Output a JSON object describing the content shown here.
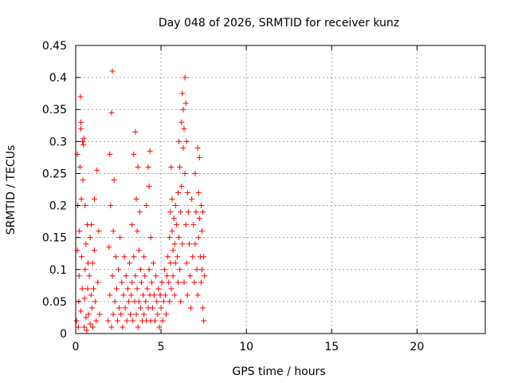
{
  "chart_data": {
    "type": "scatter",
    "title": "Day 048 of 2026, SRMTID for receiver kunz",
    "xlabel": "GPS time / hours",
    "ylabel": "SRMTID / TECUs",
    "xlim": [
      0,
      24
    ],
    "ylim": [
      0,
      0.45
    ],
    "xticks": [
      0,
      5,
      10,
      15,
      20
    ],
    "xtick_labels": [
      "0",
      "5",
      "10",
      "15",
      "20"
    ],
    "yticks": [
      0,
      0.05,
      0.1,
      0.15,
      0.2,
      0.25,
      0.3,
      0.35,
      0.4,
      0.45
    ],
    "ytick_labels": [
      "0",
      "0.05",
      "0.1",
      "0.15",
      "0.2",
      "0.25",
      "0.3",
      "0.35",
      "0.4",
      "0.45"
    ],
    "grid": true,
    "marker": "+",
    "color": "#ff0000",
    "series": [
      {
        "points": [
          [
            0.05,
            0.02
          ],
          [
            0.1,
            0.13
          ],
          [
            0.1,
            0.28
          ],
          [
            0.12,
            0.2
          ],
          [
            0.15,
            0.01
          ],
          [
            0.18,
            0.05
          ],
          [
            0.2,
            0.09
          ],
          [
            0.22,
            0.16
          ],
          [
            0.25,
            0.26
          ],
          [
            0.28,
            0.37
          ],
          [
            0.3,
            0.32
          ],
          [
            0.3,
            0.33
          ],
          [
            0.3,
            0.035
          ],
          [
            0.33,
            0.21
          ],
          [
            0.35,
            0.12
          ],
          [
            0.38,
            0.07
          ],
          [
            0.4,
            0.3
          ],
          [
            0.42,
            0.24
          ],
          [
            0.45,
            0.295
          ],
          [
            0.48,
            0.305
          ],
          [
            0.5,
            0.01
          ],
          [
            0.52,
            0.055
          ],
          [
            0.55,
            0.1
          ],
          [
            0.55,
            0.2
          ],
          [
            0.6,
            0.14
          ],
          [
            0.6,
            0.025
          ],
          [
            0.65,
            0.005
          ],
          [
            0.68,
            0.17
          ],
          [
            0.7,
            0.07
          ],
          [
            0.72,
            0.11
          ],
          [
            0.75,
            0.03
          ],
          [
            0.8,
            0.09
          ],
          [
            0.85,
            0.15
          ],
          [
            0.85,
            0.015
          ],
          [
            0.9,
            0.06
          ],
          [
            0.92,
            0.17
          ],
          [
            0.95,
            0.04
          ],
          [
            1.0,
            0.11
          ],
          [
            1.0,
            0.01
          ],
          [
            1.05,
            0.07
          ],
          [
            1.1,
            0.21
          ],
          [
            1.1,
            0.13
          ],
          [
            1.15,
            0.05
          ],
          [
            1.2,
            0.02
          ],
          [
            1.25,
            0.255
          ],
          [
            1.3,
            0.08
          ],
          [
            1.35,
            0.16
          ],
          [
            1.4,
            0.03
          ],
          [
            1.9,
            0.02
          ],
          [
            1.95,
            0.135
          ],
          [
            2.0,
            0.28
          ],
          [
            2.0,
            0.06
          ],
          [
            2.05,
            0.2
          ],
          [
            2.1,
            0.345
          ],
          [
            2.1,
            0.01
          ],
          [
            2.15,
            0.41
          ],
          [
            2.15,
            0.09
          ],
          [
            2.2,
            0.16
          ],
          [
            2.2,
            0.03
          ],
          [
            2.25,
            0.24
          ],
          [
            2.3,
            0.05
          ],
          [
            2.35,
            0.12
          ],
          [
            2.4,
            0.07
          ],
          [
            2.45,
            0.02
          ],
          [
            2.5,
            0.1
          ],
          [
            2.55,
            0.04
          ],
          [
            2.6,
            0.15
          ],
          [
            2.65,
            0.03
          ],
          [
            2.7,
            0.08
          ],
          [
            2.75,
            0.01
          ],
          [
            2.8,
            0.06
          ],
          [
            2.85,
            0.12
          ],
          [
            2.9,
            0.04
          ],
          [
            2.95,
            0.09
          ],
          [
            3.0,
            0.02
          ],
          [
            3.05,
            0.07
          ],
          [
            3.1,
            0.05
          ],
          [
            3.15,
            0.11
          ],
          [
            3.2,
            0.03
          ],
          [
            3.25,
            0.06
          ],
          [
            3.3,
            0.17
          ],
          [
            3.3,
            0.08
          ],
          [
            3.35,
            0.02
          ],
          [
            3.4,
            0.28
          ],
          [
            3.4,
            0.12
          ],
          [
            3.45,
            0.05
          ],
          [
            3.5,
            0.315
          ],
          [
            3.5,
            0.09
          ],
          [
            3.55,
            0.21
          ],
          [
            3.55,
            0.03
          ],
          [
            3.6,
            0.16
          ],
          [
            3.6,
            0.07
          ],
          [
            3.65,
            0.26
          ],
          [
            3.65,
            0.01
          ],
          [
            3.7,
            0.13
          ],
          [
            3.7,
            0.05
          ],
          [
            3.75,
            0.19
          ],
          [
            3.8,
            0.1
          ],
          [
            3.8,
            0.04
          ],
          [
            3.85,
            0.08
          ],
          [
            3.9,
            0.02
          ],
          [
            3.95,
            0.06
          ],
          [
            4.0,
            0.12
          ],
          [
            4.0,
            0.03
          ],
          [
            4.05,
            0.09
          ],
          [
            4.1,
            0.05
          ],
          [
            4.15,
            0.2
          ],
          [
            4.15,
            0.02
          ],
          [
            4.2,
            0.07
          ],
          [
            4.25,
            0.26
          ],
          [
            4.25,
            0.04
          ],
          [
            4.3,
            0.23
          ],
          [
            4.3,
            0.1
          ],
          [
            4.35,
            0.285
          ],
          [
            4.35,
            0.06
          ],
          [
            4.4,
            0.15
          ],
          [
            4.4,
            0.02
          ],
          [
            4.45,
            0.08
          ],
          [
            4.5,
            0.04
          ],
          [
            4.55,
            0.11
          ],
          [
            4.6,
            0.06
          ],
          [
            4.65,
            0.02
          ],
          [
            4.7,
            0.09
          ],
          [
            4.75,
            0.05
          ],
          [
            4.8,
            0.03
          ],
          [
            4.85,
            0.07
          ],
          [
            4.9,
            0.01
          ],
          [
            4.95,
            0.06
          ],
          [
            5.0,
            0.04
          ],
          [
            5.05,
            0.08
          ],
          [
            5.1,
            0.02
          ],
          [
            5.15,
            0.05
          ],
          [
            5.2,
            0.1
          ],
          [
            5.25,
            0.06
          ],
          [
            5.3,
            0.03
          ],
          [
            5.35,
            0.09
          ],
          [
            5.4,
            0.12
          ],
          [
            5.45,
            0.08
          ],
          [
            5.5,
            0.15
          ],
          [
            5.5,
            0.05
          ],
          [
            5.55,
            0.19
          ],
          [
            5.55,
            0.11
          ],
          [
            5.6,
            0.26
          ],
          [
            5.6,
            0.07
          ],
          [
            5.65,
            0.16
          ],
          [
            5.65,
            0.21
          ],
          [
            5.7,
            0.13
          ],
          [
            5.7,
            0.09
          ],
          [
            5.75,
            0.18
          ],
          [
            5.8,
            0.14
          ],
          [
            5.8,
            0.06
          ],
          [
            5.85,
            0.2
          ],
          [
            5.85,
            0.11
          ],
          [
            5.9,
            0.17
          ],
          [
            5.95,
            0.12
          ],
          [
            6.0,
            0.22
          ],
          [
            6.0,
            0.08
          ],
          [
            6.05,
            0.3
          ],
          [
            6.05,
            0.15
          ],
          [
            6.1,
            0.26
          ],
          [
            6.1,
            0.1
          ],
          [
            6.15,
            0.19
          ],
          [
            6.15,
            0.05
          ],
          [
            6.2,
            0.33
          ],
          [
            6.2,
            0.23
          ],
          [
            6.25,
            0.375
          ],
          [
            6.25,
            0.14
          ],
          [
            6.3,
            0.35
          ],
          [
            6.3,
            0.29
          ],
          [
            6.35,
            0.32
          ],
          [
            6.35,
            0.08
          ],
          [
            6.4,
            0.4
          ],
          [
            6.4,
            0.25
          ],
          [
            6.45,
            0.36
          ],
          [
            6.45,
            0.17
          ],
          [
            6.5,
            0.3
          ],
          [
            6.5,
            0.11
          ],
          [
            6.55,
            0.22
          ],
          [
            6.55,
            0.06
          ],
          [
            6.6,
            0.19
          ],
          [
            6.65,
            0.14
          ],
          [
            6.7,
            0.09
          ],
          [
            6.75,
            0.04
          ],
          [
            6.8,
            0.21
          ],
          [
            6.85,
            0.12
          ],
          [
            6.9,
            0.17
          ],
          [
            6.95,
            0.08
          ],
          [
            7.0,
            0.25
          ],
          [
            7.0,
            0.14
          ],
          [
            7.05,
            0.19
          ],
          [
            7.1,
            0.1
          ],
          [
            7.15,
            0.29
          ],
          [
            7.15,
            0.06
          ],
          [
            7.2,
            0.22
          ],
          [
            7.2,
            0.15
          ],
          [
            7.25,
            0.275
          ],
          [
            7.25,
            0.18
          ],
          [
            7.3,
            0.12
          ],
          [
            7.35,
            0.2
          ],
          [
            7.35,
            0.08
          ],
          [
            7.4,
            0.16
          ],
          [
            7.4,
            0.1
          ],
          [
            7.45,
            0.19
          ],
          [
            7.45,
            0.04
          ],
          [
            7.5,
            0.12
          ],
          [
            7.5,
            0.02
          ],
          [
            7.55,
            0.09
          ]
        ]
      }
    ]
  }
}
